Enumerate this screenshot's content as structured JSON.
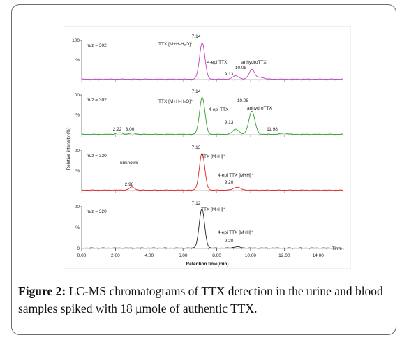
{
  "figure": {
    "caption_label": "Figure 2:",
    "caption_text": " LC-MS chromatograms of TTX detection in the urine and blood samples spiked with 18 μmole of authentic TTX."
  },
  "chart_data": {
    "type": "line",
    "x_label": "Retention time(min)",
    "y_label": "Relative intensity (%)",
    "x_unit_label": "Time",
    "x_range": [
      0,
      15.5
    ],
    "x_ticks": [
      "0.00",
      "2.00",
      "4.00",
      "6.00",
      "8.00",
      "10.00",
      "12.00",
      "14.00"
    ],
    "panels": [
      {
        "id": "p1",
        "color": "#c040c0",
        "mz": "m/z = 302",
        "y_top_label": "100",
        "y_mid_label": "%",
        "y_bottom_label": "",
        "peaks": [
          {
            "rt": 7.14,
            "height": 100,
            "width": 0.16
          },
          {
            "rt": 9.13,
            "height": 9,
            "width": 0.18
          },
          {
            "rt": 10.08,
            "height": 27,
            "width": 0.16
          },
          {
            "rt": 10.6,
            "height": 5,
            "width": 0.2
          }
        ],
        "labels": [
          "7.14",
          "TTX [M+H-H₂O]⁺",
          "4-epi TTX",
          "9.13",
          "anhydroTTX",
          "10.08"
        ]
      },
      {
        "id": "p2",
        "color": "#2ca02c",
        "mz": "m/z = 302",
        "y_top_label": "00",
        "y_mid_label": "%",
        "y_bottom_label": "",
        "peaks": [
          {
            "rt": 2.22,
            "height": 4,
            "width": 0.18
          },
          {
            "rt": 3.0,
            "height": 3,
            "width": 0.18
          },
          {
            "rt": 7.14,
            "height": 100,
            "width": 0.16
          },
          {
            "rt": 9.13,
            "height": 14,
            "width": 0.18
          },
          {
            "rt": 10.08,
            "height": 62,
            "width": 0.18
          },
          {
            "rt": 11.98,
            "height": 3,
            "width": 0.2
          }
        ],
        "labels": [
          "7.14",
          "TTX [M+H-H₂O]⁺",
          "4-epi TTX",
          "9.13",
          "10.08",
          "anhydroTTX",
          "2.22",
          "3.00",
          "11.98"
        ]
      },
      {
        "id": "p3",
        "color": "#e02020",
        "mz": "m/z = 320",
        "y_top_label": "00",
        "y_mid_label": "%",
        "y_bottom_label": "",
        "peaks": [
          {
            "rt": 2.98,
            "height": 8,
            "width": 0.16
          },
          {
            "rt": 7.13,
            "height": 100,
            "width": 0.16
          },
          {
            "rt": 9.2,
            "height": 8,
            "width": 0.2
          }
        ],
        "labels": [
          "7.13",
          "TTX [M+H]⁺",
          "unknown",
          "2.98",
          "4-epi TTX [M+H]⁺",
          "9.20"
        ]
      },
      {
        "id": "p4",
        "color": "#222222",
        "mz": "m/z = 320",
        "y_top_label": "00",
        "y_mid_label": "%",
        "y_bottom_label": "0",
        "peaks": [
          {
            "rt": 7.12,
            "height": 100,
            "width": 0.16
          },
          {
            "rt": 9.2,
            "height": 3,
            "width": 0.2
          }
        ],
        "labels": [
          "7.12",
          "TTX [M+H]⁺",
          "4-epi TTX [M+H]⁺",
          "9.20"
        ]
      }
    ]
  }
}
